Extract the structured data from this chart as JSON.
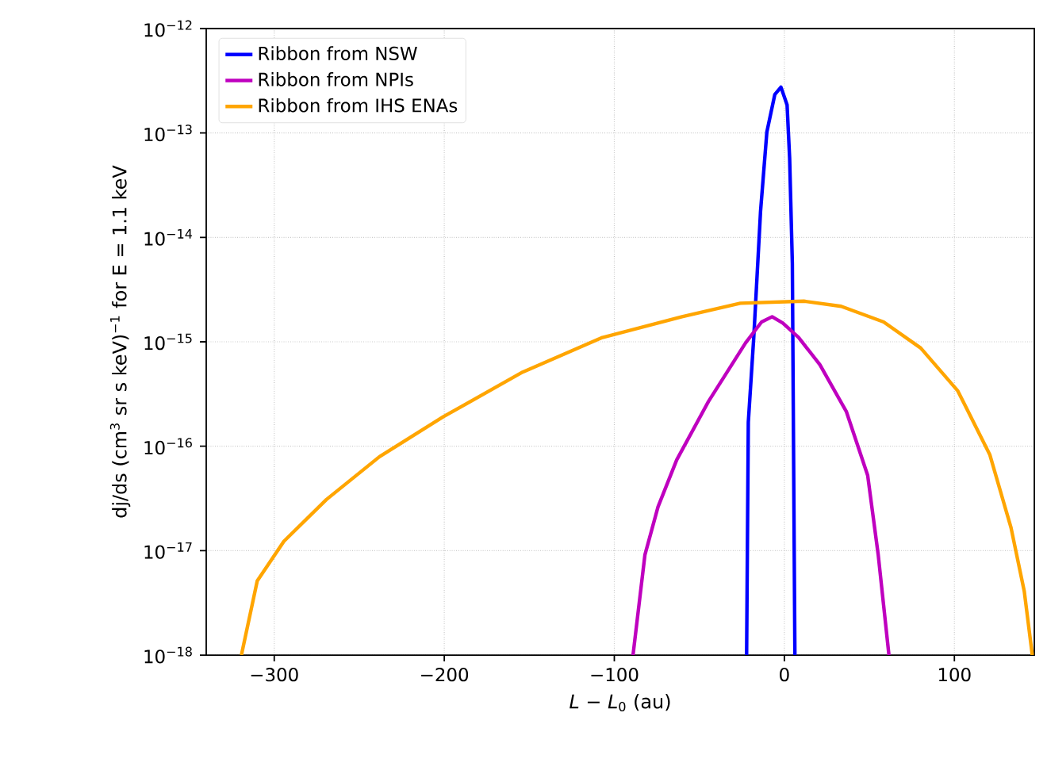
{
  "chart_data": {
    "type": "line",
    "xlabel": "*L* − *L*$_{0}$ (au)",
    "ylabel": "dj/ds (cm$^{3}$ sr s keV)$^{−1}$ for E = 1.1 keV",
    "log": "y",
    "grid": true,
    "legend": "top left",
    "line_style": "solid",
    "marker": "none",
    "xlim": [
      -340,
      147
    ],
    "ylim": [
      1e-18,
      1e-12
    ],
    "xticks": [
      {
        "value": -300,
        "label": "−300"
      },
      {
        "value": -200,
        "label": "−200"
      },
      {
        "value": -100,
        "label": "−100"
      },
      0,
      100
    ],
    "yticks": [
      {
        "value": 1e-18,
        "label": "10$^{−18}$"
      },
      {
        "value": 1e-17,
        "label": "10$^{−17}$"
      },
      {
        "value": 1e-16,
        "label": "10$^{−16}$"
      },
      {
        "value": 1e-15,
        "label": "10$^{−15}$"
      },
      {
        "value": 1e-14,
        "label": "10$^{−14}$"
      },
      {
        "value": 1e-13,
        "label": "10$^{−13}$"
      },
      {
        "value": 1e-12,
        "label": "10$^{−12}$"
      }
    ],
    "series": [
      {
        "name": "Ribbon from NSW",
        "color": "#0000ff",
        "x": [
          -22.2,
          -21.2,
          -18,
          -14,
          -10.3,
          -5.6,
          -2,
          1.6,
          3.1,
          4.7,
          5.3,
          6.2
        ],
        "values": [
          1e-18,
          1.7e-16,
          1.1e-15,
          1.78e-14,
          1.02e-13,
          2.34e-13,
          2.75e-13,
          1.86e-13,
          5.75e-14,
          5.62e-15,
          1.7e-16,
          1e-18
        ]
      },
      {
        "name": "Ribbon from NPIs",
        "color": "#bf00bf",
        "x": [
          -89,
          -82,
          -74.3,
          -63.3,
          -44.6,
          -22.8,
          -13.4,
          -7.2,
          -0.9,
          8.4,
          20.9,
          36.5,
          49,
          55.2,
          61.5
        ],
        "values": [
          1e-18,
          9.12e-18,
          2.63e-17,
          7.41e-17,
          2.69e-16,
          9.77e-16,
          1.55e-15,
          1.74e-15,
          1.51e-15,
          1.1e-15,
          6.03e-16,
          2.14e-16,
          5.25e-17,
          9.12e-18,
          1e-18
        ]
      },
      {
        "name": "Ribbon from IHS ENAs",
        "color": "#ffa500",
        "x": [
          -319.3,
          -310,
          -294.3,
          -269.3,
          -238.1,
          -200.7,
          -153.9,
          -107,
          -60.2,
          -25.9,
          11.5,
          33.4,
          58.4,
          80.2,
          102,
          120.8,
          133.3,
          141.1,
          145.8
        ],
        "values": [
          1e-18,
          5.13e-18,
          1.23e-17,
          3.09e-17,
          7.94e-17,
          1.91e-16,
          5.13e-16,
          1.1e-15,
          1.74e-15,
          2.34e-15,
          2.45e-15,
          2.19e-15,
          1.55e-15,
          8.71e-16,
          3.39e-16,
          8.32e-17,
          1.66e-17,
          4.07e-18,
          1e-18
        ]
      }
    ]
  }
}
